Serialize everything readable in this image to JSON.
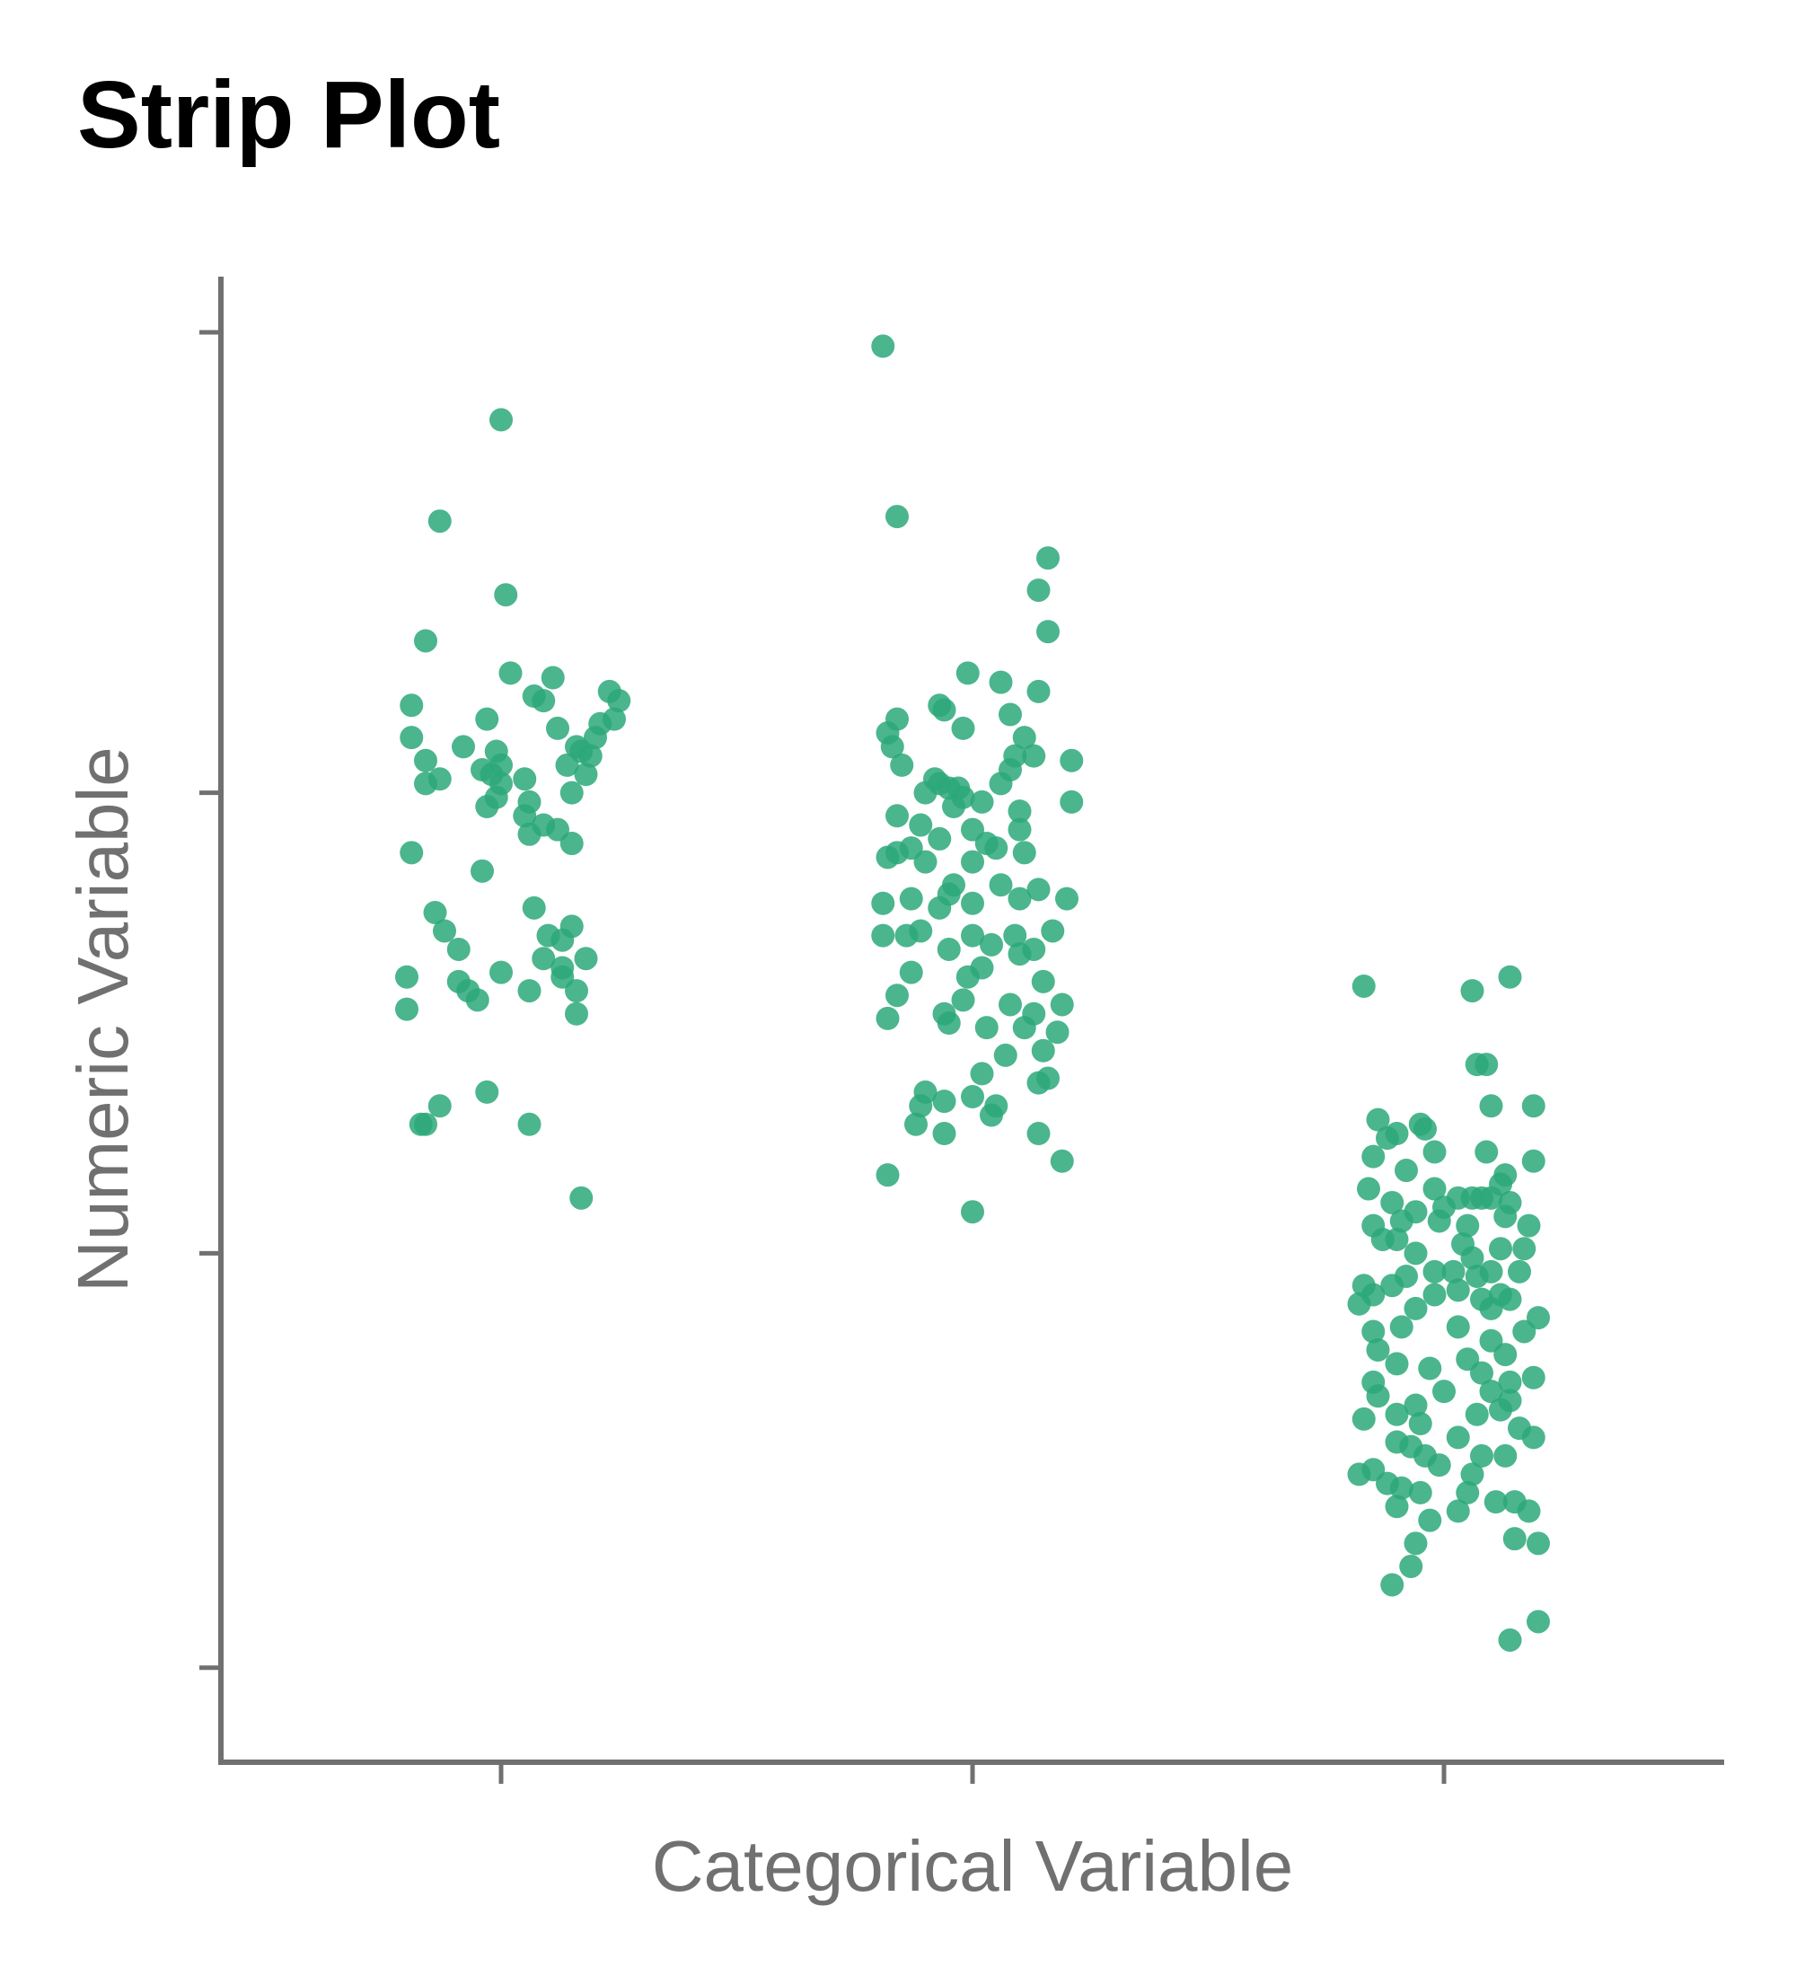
{
  "chart_data": {
    "type": "scatter",
    "subtype": "strip",
    "title": "Strip Plot",
    "xlabel": "Categorical Variable",
    "ylabel": "Numeric Variable",
    "categories": [
      "",
      "",
      ""
    ],
    "tick_labels_shown": false,
    "ylim": [
      -1,
      2
    ],
    "yticks": [
      -0.9,
      0,
      1,
      2
    ],
    "grid": false,
    "legend": "none",
    "point_color": "#2ca87a",
    "series": [
      {
        "category_index": 0,
        "points": [
          [
            0.0,
            1.81
          ],
          [
            -0.13,
            1.59
          ],
          [
            0.01,
            1.43
          ],
          [
            -0.16,
            1.33
          ],
          [
            0.02,
            1.26
          ],
          [
            0.11,
            1.25
          ],
          [
            0.23,
            1.22
          ],
          [
            0.25,
            1.2
          ],
          [
            -0.19,
            1.19
          ],
          [
            0.07,
            1.21
          ],
          [
            0.09,
            1.2
          ],
          [
            -0.03,
            1.16
          ],
          [
            0.21,
            1.15
          ],
          [
            0.24,
            1.16
          ],
          [
            0.12,
            1.14
          ],
          [
            0.2,
            1.12
          ],
          [
            -0.19,
            1.12
          ],
          [
            -0.08,
            1.1
          ],
          [
            -0.01,
            1.09
          ],
          [
            0.16,
            1.1
          ],
          [
            -0.16,
            1.07
          ],
          [
            0.17,
            1.09
          ],
          [
            0.0,
            1.06
          ],
          [
            0.19,
            1.08
          ],
          [
            -0.04,
            1.05
          ],
          [
            -0.02,
            1.04
          ],
          [
            0.14,
            1.06
          ],
          [
            0.18,
            1.04
          ],
          [
            -0.13,
            1.03
          ],
          [
            0.05,
            1.03
          ],
          [
            0.15,
            1.0
          ],
          [
            -0.01,
            0.99
          ],
          [
            0.06,
            0.98
          ],
          [
            -0.16,
            1.02
          ],
          [
            0.0,
            1.02
          ],
          [
            -0.03,
            0.97
          ],
          [
            0.05,
            0.95
          ],
          [
            0.09,
            0.93
          ],
          [
            0.12,
            0.92
          ],
          [
            0.15,
            0.89
          ],
          [
            0.06,
            0.91
          ],
          [
            -0.19,
            0.87
          ],
          [
            -0.04,
            0.83
          ],
          [
            0.07,
            0.75
          ],
          [
            -0.14,
            0.74
          ],
          [
            0.15,
            0.71
          ],
          [
            0.1,
            0.69
          ],
          [
            -0.12,
            0.7
          ],
          [
            0.13,
            0.68
          ],
          [
            -0.09,
            0.66
          ],
          [
            0.18,
            0.64
          ],
          [
            0.09,
            0.64
          ],
          [
            0.13,
            0.62
          ],
          [
            0.0,
            0.61
          ],
          [
            -0.2,
            0.6
          ],
          [
            0.13,
            0.6
          ],
          [
            -0.07,
            0.57
          ],
          [
            -0.09,
            0.59
          ],
          [
            0.06,
            0.57
          ],
          [
            0.16,
            0.57
          ],
          [
            -0.05,
            0.55
          ],
          [
            -0.2,
            0.53
          ],
          [
            0.16,
            0.52
          ],
          [
            -0.03,
            0.35
          ],
          [
            -0.13,
            0.32
          ],
          [
            -0.17,
            0.28
          ],
          [
            -0.16,
            0.28
          ],
          [
            0.06,
            0.28
          ],
          [
            0.17,
            0.12
          ]
        ]
      },
      {
        "category_index": 1,
        "points": [
          [
            -0.19,
            1.97
          ],
          [
            -0.16,
            1.6
          ],
          [
            0.16,
            1.51
          ],
          [
            0.14,
            1.44
          ],
          [
            0.16,
            1.35
          ],
          [
            -0.01,
            1.26
          ],
          [
            0.06,
            1.24
          ],
          [
            0.14,
            1.22
          ],
          [
            -0.07,
            1.19
          ],
          [
            -0.06,
            1.18
          ],
          [
            -0.16,
            1.16
          ],
          [
            0.08,
            1.17
          ],
          [
            -0.02,
            1.14
          ],
          [
            -0.18,
            1.13
          ],
          [
            0.11,
            1.12
          ],
          [
            -0.17,
            1.1
          ],
          [
            0.09,
            1.08
          ],
          [
            0.13,
            1.08
          ],
          [
            0.21,
            1.07
          ],
          [
            -0.15,
            1.06
          ],
          [
            0.08,
            1.05
          ],
          [
            -0.08,
            1.03
          ],
          [
            -0.07,
            1.02
          ],
          [
            -0.05,
            1.01
          ],
          [
            -0.03,
            1.01
          ],
          [
            0.06,
            1.02
          ],
          [
            -0.1,
            1.0
          ],
          [
            -0.02,
            0.99
          ],
          [
            -0.04,
            0.97
          ],
          [
            0.02,
            0.98
          ],
          [
            0.1,
            0.96
          ],
          [
            0.21,
            0.98
          ],
          [
            -0.16,
            0.95
          ],
          [
            -0.11,
            0.93
          ],
          [
            0.0,
            0.92
          ],
          [
            0.1,
            0.92
          ],
          [
            0.03,
            0.89
          ],
          [
            -0.07,
            0.9
          ],
          [
            -0.16,
            0.87
          ],
          [
            -0.13,
            0.88
          ],
          [
            0.05,
            0.88
          ],
          [
            0.11,
            0.87
          ],
          [
            -0.18,
            0.86
          ],
          [
            -0.1,
            0.85
          ],
          [
            0.0,
            0.85
          ],
          [
            -0.04,
            0.8
          ],
          [
            0.06,
            0.8
          ],
          [
            0.14,
            0.79
          ],
          [
            0.2,
            0.77
          ],
          [
            -0.13,
            0.77
          ],
          [
            -0.19,
            0.76
          ],
          [
            0.1,
            0.77
          ],
          [
            -0.05,
            0.78
          ],
          [
            0.0,
            0.76
          ],
          [
            -0.07,
            0.75
          ],
          [
            0.17,
            0.7
          ],
          [
            0.09,
            0.69
          ],
          [
            -0.19,
            0.69
          ],
          [
            0.0,
            0.69
          ],
          [
            -0.11,
            0.7
          ],
          [
            -0.14,
            0.69
          ],
          [
            0.04,
            0.67
          ],
          [
            0.13,
            0.66
          ],
          [
            -0.05,
            0.66
          ],
          [
            0.1,
            0.65
          ],
          [
            0.02,
            0.62
          ],
          [
            -0.13,
            0.61
          ],
          [
            -0.01,
            0.6
          ],
          [
            0.15,
            0.59
          ],
          [
            -0.16,
            0.56
          ],
          [
            -0.02,
            0.55
          ],
          [
            0.08,
            0.54
          ],
          [
            0.19,
            0.54
          ],
          [
            0.13,
            0.52
          ],
          [
            -0.18,
            0.51
          ],
          [
            -0.05,
            0.5
          ],
          [
            0.03,
            0.49
          ],
          [
            -0.06,
            0.52
          ],
          [
            0.11,
            0.49
          ],
          [
            0.18,
            0.48
          ],
          [
            0.15,
            0.44
          ],
          [
            0.07,
            0.43
          ],
          [
            0.02,
            0.39
          ],
          [
            0.16,
            0.38
          ],
          [
            -0.1,
            0.35
          ],
          [
            0.14,
            0.37
          ],
          [
            -0.11,
            0.32
          ],
          [
            0.0,
            0.34
          ],
          [
            0.05,
            0.32
          ],
          [
            -0.06,
            0.33
          ],
          [
            -0.12,
            0.28
          ],
          [
            0.04,
            0.3
          ],
          [
            0.14,
            0.26
          ],
          [
            -0.06,
            0.26
          ],
          [
            0.19,
            0.2
          ],
          [
            -0.18,
            0.17
          ],
          [
            0.0,
            0.09
          ]
        ]
      },
      {
        "category_index": 2,
        "points": [
          [
            -0.17,
            0.58
          ],
          [
            0.06,
            0.57
          ],
          [
            0.14,
            0.6
          ],
          [
            0.07,
            0.41
          ],
          [
            0.09,
            0.41
          ],
          [
            0.1,
            0.32
          ],
          [
            0.19,
            0.32
          ],
          [
            -0.14,
            0.29
          ],
          [
            -0.05,
            0.28
          ],
          [
            -0.1,
            0.26
          ],
          [
            -0.12,
            0.25
          ],
          [
            -0.04,
            0.27
          ],
          [
            0.09,
            0.22
          ],
          [
            -0.02,
            0.22
          ],
          [
            -0.15,
            0.21
          ],
          [
            0.19,
            0.2
          ],
          [
            -0.08,
            0.18
          ],
          [
            0.13,
            0.17
          ],
          [
            -0.16,
            0.14
          ],
          [
            -0.02,
            0.14
          ],
          [
            0.12,
            0.15
          ],
          [
            0.06,
            0.12
          ],
          [
            0.03,
            0.12
          ],
          [
            -0.11,
            0.11
          ],
          [
            0.14,
            0.11
          ],
          [
            0.0,
            0.1
          ],
          [
            0.08,
            0.12
          ],
          [
            0.1,
            0.12
          ],
          [
            -0.06,
            0.09
          ],
          [
            0.13,
            0.08
          ],
          [
            -0.15,
            0.06
          ],
          [
            -0.09,
            0.07
          ],
          [
            -0.01,
            0.07
          ],
          [
            0.05,
            0.06
          ],
          [
            0.18,
            0.06
          ],
          [
            -0.13,
            0.03
          ],
          [
            -0.1,
            0.03
          ],
          [
            0.04,
            0.02
          ],
          [
            0.12,
            0.01
          ],
          [
            0.17,
            0.01
          ],
          [
            -0.06,
            0.0
          ],
          [
            0.06,
            -0.01
          ],
          [
            -0.02,
            -0.04
          ],
          [
            0.02,
            -0.04
          ],
          [
            0.1,
            -0.04
          ],
          [
            0.16,
            -0.04
          ],
          [
            -0.08,
            -0.05
          ],
          [
            0.07,
            -0.05
          ],
          [
            -0.17,
            -0.07
          ],
          [
            -0.11,
            -0.07
          ],
          [
            0.03,
            -0.08
          ],
          [
            -0.15,
            -0.09
          ],
          [
            0.12,
            -0.09
          ],
          [
            -0.02,
            -0.09
          ],
          [
            0.08,
            -0.1
          ],
          [
            0.14,
            -0.1
          ],
          [
            -0.18,
            -0.11
          ],
          [
            -0.06,
            -0.12
          ],
          [
            0.1,
            -0.12
          ],
          [
            0.2,
            -0.14
          ],
          [
            -0.15,
            -0.17
          ],
          [
            -0.09,
            -0.16
          ],
          [
            0.03,
            -0.16
          ],
          [
            0.17,
            -0.17
          ],
          [
            0.1,
            -0.19
          ],
          [
            -0.14,
            -0.21
          ],
          [
            0.05,
            -0.23
          ],
          [
            0.13,
            -0.22
          ],
          [
            -0.1,
            -0.24
          ],
          [
            -0.03,
            -0.25
          ],
          [
            0.08,
            -0.26
          ],
          [
            -0.15,
            -0.28
          ],
          [
            0.14,
            -0.28
          ],
          [
            0.19,
            -0.27
          ],
          [
            0.0,
            -0.3
          ],
          [
            0.1,
            -0.3
          ],
          [
            -0.14,
            -0.31
          ],
          [
            -0.06,
            -0.33
          ],
          [
            0.14,
            -0.32
          ],
          [
            0.07,
            -0.35
          ],
          [
            0.12,
            -0.34
          ],
          [
            -0.17,
            -0.36
          ],
          [
            -0.1,
            -0.35
          ],
          [
            -0.05,
            -0.37
          ],
          [
            0.16,
            -0.38
          ],
          [
            -0.1,
            -0.41
          ],
          [
            0.03,
            -0.4
          ],
          [
            0.19,
            -0.4
          ],
          [
            -0.07,
            -0.42
          ],
          [
            -0.04,
            -0.44
          ],
          [
            0.08,
            -0.44
          ],
          [
            0.13,
            -0.44
          ],
          [
            -0.01,
            -0.46
          ],
          [
            -0.15,
            -0.47
          ],
          [
            0.06,
            -0.48
          ],
          [
            -0.18,
            -0.48
          ],
          [
            -0.12,
            -0.5
          ],
          [
            -0.09,
            -0.51
          ],
          [
            0.05,
            -0.52
          ],
          [
            -0.05,
            -0.52
          ],
          [
            0.11,
            -0.54
          ],
          [
            0.15,
            -0.54
          ],
          [
            -0.1,
            -0.55
          ],
          [
            0.03,
            -0.56
          ],
          [
            0.18,
            -0.56
          ],
          [
            -0.03,
            -0.58
          ],
          [
            0.15,
            -0.62
          ],
          [
            -0.06,
            -0.63
          ],
          [
            0.2,
            -0.63
          ],
          [
            -0.07,
            -0.68
          ],
          [
            -0.11,
            -0.72
          ],
          [
            0.2,
            -0.8
          ],
          [
            0.14,
            -0.84
          ]
        ]
      }
    ]
  }
}
